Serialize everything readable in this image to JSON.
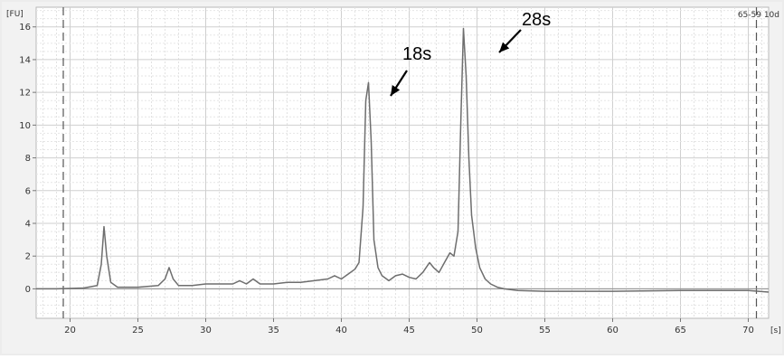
{
  "chart_data": {
    "type": "line",
    "title": "",
    "sample_id": "65-59 10d",
    "xlabel": "[s]",
    "ylabel": "[FU]",
    "xlim": [
      17.5,
      71.5
    ],
    "ylim": [
      -1.8,
      17.2
    ],
    "x_ticks": [
      20,
      25,
      30,
      35,
      40,
      45,
      50,
      55,
      60,
      65,
      70
    ],
    "y_ticks": [
      0,
      2,
      4,
      6,
      8,
      10,
      12,
      14,
      16
    ],
    "grid": true,
    "legend": "none",
    "markers": [
      19.5,
      70.6
    ],
    "annotations": [
      {
        "label": "18s",
        "x": 42.0,
        "y": 12.6
      },
      {
        "label": "28s",
        "x": 49.0,
        "y": 15.9
      }
    ],
    "series": [
      {
        "x": [
          17.5,
          19.0,
          21.0,
          22.0,
          22.3,
          22.5,
          22.7,
          23.0,
          23.5,
          25.0,
          26.5,
          27.0,
          27.3,
          27.6,
          28.0,
          29.0,
          30.0,
          31.0,
          32.0,
          32.5,
          33.0,
          33.5,
          34.0,
          35.0,
          36.0,
          37.0,
          38.0,
          39.0,
          39.5,
          40.0,
          40.5,
          41.0,
          41.3,
          41.6,
          41.8,
          42.0,
          42.2,
          42.4,
          42.7,
          43.0,
          43.5,
          44.0,
          44.5,
          45.0,
          45.5,
          46.0,
          46.5,
          46.8,
          47.2,
          47.6,
          48.0,
          48.3,
          48.6,
          48.8,
          49.0,
          49.2,
          49.4,
          49.6,
          49.9,
          50.2,
          50.6,
          51.0,
          51.5,
          52.0,
          53.0,
          55.0,
          60.0,
          65.0,
          70.0,
          71.5
        ],
        "y": [
          0.0,
          0.0,
          0.05,
          0.2,
          1.5,
          3.8,
          2.0,
          0.4,
          0.1,
          0.1,
          0.2,
          0.6,
          1.3,
          0.6,
          0.2,
          0.2,
          0.3,
          0.3,
          0.3,
          0.5,
          0.3,
          0.6,
          0.3,
          0.3,
          0.4,
          0.4,
          0.5,
          0.6,
          0.8,
          0.6,
          0.9,
          1.2,
          1.6,
          5.0,
          11.5,
          12.6,
          9.0,
          3.0,
          1.3,
          0.8,
          0.5,
          0.8,
          0.9,
          0.7,
          0.6,
          1.0,
          1.6,
          1.3,
          1.0,
          1.6,
          2.2,
          2.0,
          3.5,
          10.0,
          15.9,
          13.0,
          8.0,
          4.5,
          2.5,
          1.3,
          0.6,
          0.3,
          0.1,
          0.0,
          -0.1,
          -0.15,
          -0.15,
          -0.1,
          -0.1,
          -0.2
        ]
      }
    ]
  }
}
